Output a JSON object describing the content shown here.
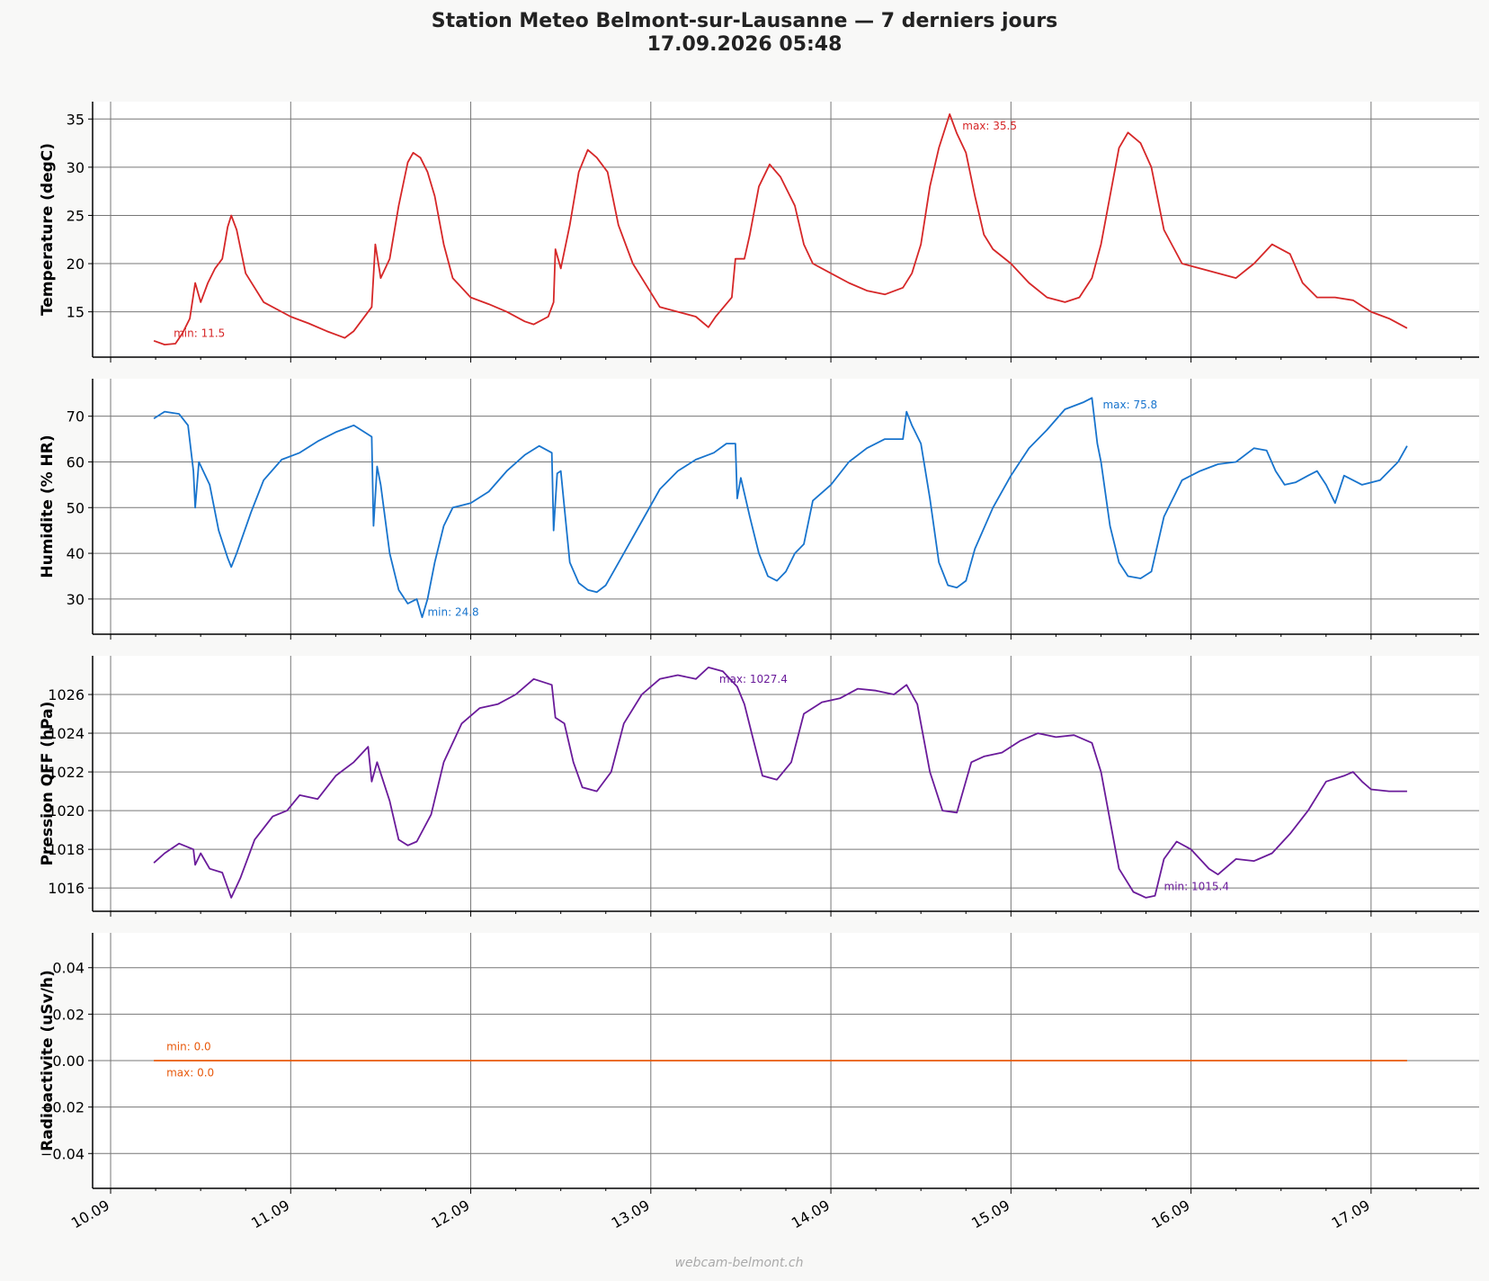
{
  "header": {
    "title": "Station Meteo Belmont-sur-Lausanne — 7 derniers jours",
    "subtitle": "17.09.2026 05:48"
  },
  "footer": {
    "credit": "webcam-belmont.ch"
  },
  "chart_data": [
    {
      "type": "line",
      "ylabel": "Temperature (degC)",
      "color": "#d62728",
      "ylim": [
        10.3,
        36.8
      ],
      "yticks": [
        15,
        20,
        25,
        30,
        35
      ],
      "annotations": [
        {
          "text": "min: 11.5",
          "x": 10.35,
          "y": 12.4,
          "anchor": "start"
        },
        {
          "text": "max: 35.5",
          "x": 14.73,
          "y": 33.9,
          "anchor": "start"
        }
      ],
      "points": [
        [
          10.24,
          12.0
        ],
        [
          10.3,
          11.6
        ],
        [
          10.36,
          11.7
        ],
        [
          10.4,
          12.8
        ],
        [
          10.44,
          14.3
        ],
        [
          10.47,
          18.0
        ],
        [
          10.5,
          16.0
        ],
        [
          10.54,
          18.0
        ],
        [
          10.58,
          19.5
        ],
        [
          10.62,
          20.5
        ],
        [
          10.65,
          23.8
        ],
        [
          10.67,
          25.0
        ],
        [
          10.7,
          23.5
        ],
        [
          10.75,
          19.0
        ],
        [
          10.85,
          16.0
        ],
        [
          11.0,
          14.5
        ],
        [
          11.1,
          13.8
        ],
        [
          11.2,
          13.0
        ],
        [
          11.3,
          12.3
        ],
        [
          11.35,
          13.0
        ],
        [
          11.45,
          15.5
        ],
        [
          11.47,
          22.0
        ],
        [
          11.5,
          18.5
        ],
        [
          11.55,
          20.5
        ],
        [
          11.6,
          26.0
        ],
        [
          11.65,
          30.5
        ],
        [
          11.68,
          31.5
        ],
        [
          11.72,
          31.0
        ],
        [
          11.76,
          29.5
        ],
        [
          11.8,
          27.0
        ],
        [
          11.85,
          22.0
        ],
        [
          11.9,
          18.5
        ],
        [
          12.0,
          16.5
        ],
        [
          12.1,
          15.8
        ],
        [
          12.2,
          15.0
        ],
        [
          12.3,
          14.0
        ],
        [
          12.35,
          13.7
        ],
        [
          12.43,
          14.5
        ],
        [
          12.46,
          16.0
        ],
        [
          12.47,
          21.5
        ],
        [
          12.5,
          19.5
        ],
        [
          12.55,
          24.0
        ],
        [
          12.6,
          29.5
        ],
        [
          12.65,
          31.8
        ],
        [
          12.7,
          31.0
        ],
        [
          12.76,
          29.5
        ],
        [
          12.82,
          24.0
        ],
        [
          12.9,
          20.0
        ],
        [
          13.0,
          17.0
        ],
        [
          13.05,
          15.5
        ],
        [
          13.15,
          15.0
        ],
        [
          13.25,
          14.5
        ],
        [
          13.32,
          13.4
        ],
        [
          13.36,
          14.5
        ],
        [
          13.45,
          16.5
        ],
        [
          13.47,
          20.5
        ],
        [
          13.52,
          20.5
        ],
        [
          13.55,
          23.0
        ],
        [
          13.6,
          28.0
        ],
        [
          13.66,
          30.3
        ],
        [
          13.72,
          29.0
        ],
        [
          13.8,
          26.0
        ],
        [
          13.85,
          22.0
        ],
        [
          13.9,
          20.0
        ],
        [
          14.0,
          19.0
        ],
        [
          14.1,
          18.0
        ],
        [
          14.2,
          17.2
        ],
        [
          14.3,
          16.8
        ],
        [
          14.4,
          17.5
        ],
        [
          14.45,
          19.0
        ],
        [
          14.5,
          22.0
        ],
        [
          14.55,
          28.0
        ],
        [
          14.6,
          32.0
        ],
        [
          14.66,
          35.5
        ],
        [
          14.7,
          33.5
        ],
        [
          14.75,
          31.5
        ],
        [
          14.8,
          27.0
        ],
        [
          14.85,
          23.0
        ],
        [
          14.9,
          21.5
        ],
        [
          15.0,
          20.0
        ],
        [
          15.1,
          18.0
        ],
        [
          15.2,
          16.5
        ],
        [
          15.3,
          16.0
        ],
        [
          15.38,
          16.5
        ],
        [
          15.45,
          18.5
        ],
        [
          15.5,
          22.0
        ],
        [
          15.55,
          27.0
        ],
        [
          15.6,
          32.0
        ],
        [
          15.65,
          33.6
        ],
        [
          15.72,
          32.5
        ],
        [
          15.78,
          30.0
        ],
        [
          15.85,
          23.5
        ],
        [
          15.95,
          20.0
        ],
        [
          16.05,
          19.5
        ],
        [
          16.15,
          19.0
        ],
        [
          16.25,
          18.5
        ],
        [
          16.35,
          20.0
        ],
        [
          16.45,
          22.0
        ],
        [
          16.55,
          21.0
        ],
        [
          16.62,
          18.0
        ],
        [
          16.7,
          16.5
        ],
        [
          16.8,
          16.5
        ],
        [
          16.9,
          16.2
        ],
        [
          17.0,
          15.0
        ],
        [
          17.1,
          14.3
        ],
        [
          17.2,
          13.3
        ]
      ]
    },
    {
      "type": "line",
      "ylabel": "Humidite (% HR)",
      "color": "#1874cd",
      "ylim": [
        22.3,
        78.2
      ],
      "yticks": [
        30,
        40,
        50,
        60,
        70
      ],
      "annotations": [
        {
          "text": "min: 24.8",
          "x": 11.76,
          "y": 26.3,
          "anchor": "start"
        },
        {
          "text": "max: 75.8",
          "x": 15.51,
          "y": 71.7,
          "anchor": "start"
        }
      ],
      "points": [
        [
          10.24,
          69.5
        ],
        [
          10.3,
          71.0
        ],
        [
          10.38,
          70.5
        ],
        [
          10.43,
          68.0
        ],
        [
          10.46,
          58.0
        ],
        [
          10.47,
          50.0
        ],
        [
          10.49,
          60.0
        ],
        [
          10.55,
          55.0
        ],
        [
          10.6,
          45.0
        ],
        [
          10.65,
          39.0
        ],
        [
          10.67,
          37.0
        ],
        [
          10.7,
          40.0
        ],
        [
          10.78,
          49.0
        ],
        [
          10.85,
          56.0
        ],
        [
          10.95,
          60.5
        ],
        [
          11.05,
          62.0
        ],
        [
          11.15,
          64.5
        ],
        [
          11.25,
          66.5
        ],
        [
          11.35,
          68.0
        ],
        [
          11.45,
          65.5
        ],
        [
          11.46,
          46.0
        ],
        [
          11.48,
          59.0
        ],
        [
          11.5,
          55.0
        ],
        [
          11.55,
          40.0
        ],
        [
          11.6,
          32.0
        ],
        [
          11.65,
          29.0
        ],
        [
          11.7,
          30.0
        ],
        [
          11.73,
          26.0
        ],
        [
          11.76,
          30.0
        ],
        [
          11.8,
          38.0
        ],
        [
          11.85,
          46.0
        ],
        [
          11.9,
          50.0
        ],
        [
          12.0,
          51.0
        ],
        [
          12.1,
          53.5
        ],
        [
          12.2,
          58.0
        ],
        [
          12.3,
          61.5
        ],
        [
          12.38,
          63.5
        ],
        [
          12.45,
          62.0
        ],
        [
          12.46,
          45.0
        ],
        [
          12.48,
          57.5
        ],
        [
          12.5,
          58.0
        ],
        [
          12.55,
          38.0
        ],
        [
          12.6,
          33.5
        ],
        [
          12.65,
          32.0
        ],
        [
          12.7,
          31.5
        ],
        [
          12.75,
          33.0
        ],
        [
          12.85,
          40.0
        ],
        [
          12.95,
          47.0
        ],
        [
          13.05,
          54.0
        ],
        [
          13.15,
          58.0
        ],
        [
          13.25,
          60.5
        ],
        [
          13.35,
          62.0
        ],
        [
          13.42,
          64.0
        ],
        [
          13.47,
          64.0
        ],
        [
          13.48,
          52.0
        ],
        [
          13.5,
          56.5
        ],
        [
          13.55,
          48.0
        ],
        [
          13.6,
          40.0
        ],
        [
          13.65,
          35.0
        ],
        [
          13.7,
          34.0
        ],
        [
          13.75,
          36.0
        ],
        [
          13.8,
          40.0
        ],
        [
          13.85,
          42.0
        ],
        [
          13.9,
          51.5
        ],
        [
          14.0,
          55.0
        ],
        [
          14.1,
          60.0
        ],
        [
          14.2,
          63.0
        ],
        [
          14.3,
          65.0
        ],
        [
          14.4,
          65.0
        ],
        [
          14.42,
          71.0
        ],
        [
          14.45,
          68.0
        ],
        [
          14.5,
          64.0
        ],
        [
          14.55,
          52.0
        ],
        [
          14.6,
          38.0
        ],
        [
          14.65,
          33.0
        ],
        [
          14.7,
          32.5
        ],
        [
          14.75,
          34.0
        ],
        [
          14.8,
          41.0
        ],
        [
          14.9,
          50.0
        ],
        [
          15.0,
          57.0
        ],
        [
          15.1,
          63.0
        ],
        [
          15.2,
          67.0
        ],
        [
          15.3,
          71.5
        ],
        [
          15.4,
          73.0
        ],
        [
          15.45,
          74.0
        ],
        [
          15.48,
          64.0
        ],
        [
          15.5,
          60.0
        ],
        [
          15.55,
          46.0
        ],
        [
          15.6,
          38.0
        ],
        [
          15.65,
          35.0
        ],
        [
          15.72,
          34.5
        ],
        [
          15.78,
          36.0
        ],
        [
          15.85,
          48.0
        ],
        [
          15.95,
          56.0
        ],
        [
          16.05,
          58.0
        ],
        [
          16.15,
          59.5
        ],
        [
          16.25,
          60.0
        ],
        [
          16.35,
          63.0
        ],
        [
          16.42,
          62.5
        ],
        [
          16.47,
          58.0
        ],
        [
          16.52,
          55.0
        ],
        [
          16.58,
          55.5
        ],
        [
          16.65,
          57.0
        ],
        [
          16.7,
          58.0
        ],
        [
          16.75,
          55.0
        ],
        [
          16.8,
          51.0
        ],
        [
          16.85,
          57.0
        ],
        [
          16.95,
          55.0
        ],
        [
          17.05,
          56.0
        ],
        [
          17.15,
          60.0
        ],
        [
          17.2,
          63.5
        ]
      ]
    },
    {
      "type": "line",
      "ylabel": "Pression QFF (hPa)",
      "color": "#6a1b9a",
      "ylim": [
        1014.8,
        1028.0
      ],
      "yticks": [
        1016,
        1018,
        1020,
        1022,
        1024,
        1026
      ],
      "annotations": [
        {
          "text": "min: 1015.4",
          "x": 15.85,
          "y": 1015.9,
          "anchor": "start"
        },
        {
          "text": "max: 1027.4",
          "x": 13.38,
          "y": 1026.6,
          "anchor": "start"
        }
      ],
      "points": [
        [
          10.24,
          1017.3
        ],
        [
          10.3,
          1017.8
        ],
        [
          10.38,
          1018.3
        ],
        [
          10.46,
          1018.0
        ],
        [
          10.47,
          1017.2
        ],
        [
          10.5,
          1017.8
        ],
        [
          10.55,
          1017.0
        ],
        [
          10.62,
          1016.8
        ],
        [
          10.67,
          1015.5
        ],
        [
          10.72,
          1016.5
        ],
        [
          10.8,
          1018.5
        ],
        [
          10.9,
          1019.7
        ],
        [
          10.98,
          1020.0
        ],
        [
          11.05,
          1020.8
        ],
        [
          11.15,
          1020.6
        ],
        [
          11.25,
          1021.8
        ],
        [
          11.35,
          1022.5
        ],
        [
          11.43,
          1023.3
        ],
        [
          11.45,
          1021.5
        ],
        [
          11.48,
          1022.5
        ],
        [
          11.55,
          1020.5
        ],
        [
          11.6,
          1018.5
        ],
        [
          11.65,
          1018.2
        ],
        [
          11.7,
          1018.4
        ],
        [
          11.78,
          1019.8
        ],
        [
          11.85,
          1022.5
        ],
        [
          11.95,
          1024.5
        ],
        [
          12.05,
          1025.3
        ],
        [
          12.15,
          1025.5
        ],
        [
          12.25,
          1026.0
        ],
        [
          12.35,
          1026.8
        ],
        [
          12.45,
          1026.5
        ],
        [
          12.47,
          1024.8
        ],
        [
          12.52,
          1024.5
        ],
        [
          12.57,
          1022.5
        ],
        [
          12.62,
          1021.2
        ],
        [
          12.7,
          1021.0
        ],
        [
          12.78,
          1022.0
        ],
        [
          12.85,
          1024.5
        ],
        [
          12.95,
          1026.0
        ],
        [
          13.05,
          1026.8
        ],
        [
          13.15,
          1027.0
        ],
        [
          13.25,
          1026.8
        ],
        [
          13.32,
          1027.4
        ],
        [
          13.4,
          1027.2
        ],
        [
          13.48,
          1026.4
        ],
        [
          13.52,
          1025.5
        ],
        [
          13.56,
          1024.0
        ],
        [
          13.62,
          1021.8
        ],
        [
          13.7,
          1021.6
        ],
        [
          13.78,
          1022.5
        ],
        [
          13.85,
          1025.0
        ],
        [
          13.95,
          1025.6
        ],
        [
          14.05,
          1025.8
        ],
        [
          14.15,
          1026.3
        ],
        [
          14.25,
          1026.2
        ],
        [
          14.35,
          1026.0
        ],
        [
          14.42,
          1026.5
        ],
        [
          14.48,
          1025.5
        ],
        [
          14.55,
          1022.0
        ],
        [
          14.62,
          1020.0
        ],
        [
          14.7,
          1019.9
        ],
        [
          14.78,
          1022.5
        ],
        [
          14.85,
          1022.8
        ],
        [
          14.95,
          1023.0
        ],
        [
          15.05,
          1023.6
        ],
        [
          15.15,
          1024.0
        ],
        [
          15.25,
          1023.8
        ],
        [
          15.35,
          1023.9
        ],
        [
          15.45,
          1023.5
        ],
        [
          15.5,
          1022.0
        ],
        [
          15.55,
          1019.5
        ],
        [
          15.6,
          1017.0
        ],
        [
          15.68,
          1015.8
        ],
        [
          15.75,
          1015.5
        ],
        [
          15.8,
          1015.6
        ],
        [
          15.85,
          1017.5
        ],
        [
          15.92,
          1018.4
        ],
        [
          16.0,
          1018.0
        ],
        [
          16.1,
          1017.0
        ],
        [
          16.15,
          1016.7
        ],
        [
          16.25,
          1017.5
        ],
        [
          16.35,
          1017.4
        ],
        [
          16.45,
          1017.8
        ],
        [
          16.55,
          1018.8
        ],
        [
          16.65,
          1020.0
        ],
        [
          16.75,
          1021.5
        ],
        [
          16.85,
          1021.8
        ],
        [
          16.9,
          1022.0
        ],
        [
          16.95,
          1021.5
        ],
        [
          17.0,
          1021.1
        ],
        [
          17.1,
          1021.0
        ],
        [
          17.2,
          1021.0
        ]
      ]
    },
    {
      "type": "line",
      "ylabel": "Radioactivite (uSv/h)",
      "color": "#e8590c",
      "ylim": [
        -0.055,
        0.055
      ],
      "yticks": [
        -0.04,
        -0.02,
        0.0,
        0.02,
        0.04
      ],
      "ytick_labels": [
        "−0.04",
        "−0.02",
        "0.00",
        "0.02",
        "0.04"
      ],
      "annotations": [
        {
          "text": "min: 0.0",
          "x": 10.31,
          "y": 0.0045,
          "anchor": "start"
        },
        {
          "text": "max: 0.0",
          "x": 10.31,
          "y": -0.0068,
          "anchor": "start"
        }
      ],
      "points": [
        [
          10.24,
          0.0
        ],
        [
          17.2,
          0.0
        ]
      ]
    }
  ],
  "xaxis": {
    "xlim": [
      9.9,
      17.6
    ],
    "ticks": [
      10,
      11,
      12,
      13,
      14,
      15,
      16,
      17
    ],
    "labels": [
      "10.09",
      "11.09",
      "12.09",
      "13.09",
      "14.09",
      "15.09",
      "16.09",
      "17.09"
    ],
    "minor_step": 0.25
  }
}
